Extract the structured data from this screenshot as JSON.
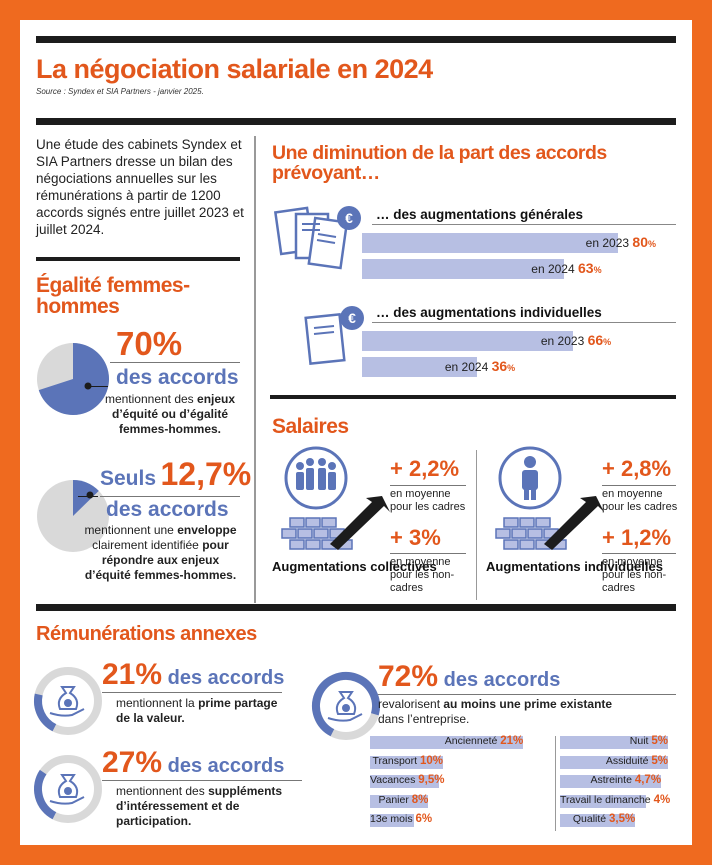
{
  "title": "La négociation salariale en 2024",
  "source": "Source : Syndex et SIA Partners - janvier 2025.",
  "intro": "Une étude des cabinets Syndex et SIA Partners dresse un bilan des négociations annuelles sur les rémunérations à partir de 1200 accords signés entre juillet 2023 et juillet 2024.",
  "colors": {
    "accent": "#e2571c",
    "blue": "#5b74b8",
    "lightblue": "#b7bfe3"
  },
  "egalite": {
    "heading": "Égalité femmes-hommes",
    "stat1": {
      "value": "70%",
      "label": "des accords",
      "desc1": "mentionnent des ",
      "desc2": "enjeux d’équité ou d’égalité femmes-hommes.",
      "desc3": "",
      "pie_pct": 70
    },
    "stat2": {
      "prefix": "Seuls",
      "value": "12,7%",
      "label": "des accords",
      "desc1": "mentionnent une ",
      "desc2": "enveloppe",
      "desc3": " clairement identifiée ",
      "desc4": "pour répondre aux enjeux d’équité femmes-hommes.",
      "pie_pct": 12.7
    }
  },
  "diminution": {
    "heading": "Une diminution de la part des accords prévoyant…",
    "generales": {
      "title": "… des augmentations générales",
      "rows": [
        {
          "year": "en 2023",
          "pct": "80",
          "value": 80
        },
        {
          "year": "en 2024",
          "pct": "63",
          "value": 63
        }
      ]
    },
    "individuelles": {
      "title": "… des augmentations individuelles",
      "rows": [
        {
          "year": "en 2023",
          "pct": "66",
          "value": 66
        },
        {
          "year": "en 2024",
          "pct": "36",
          "value": 36
        }
      ]
    }
  },
  "salaires": {
    "heading": "Salaires",
    "collectives": {
      "label": "Augmentations collectives",
      "cadres": {
        "value": "+ 2,2%",
        "desc": "en moyenne pour les cadres"
      },
      "noncadres": {
        "value": "+ 3%",
        "desc": "en moyenne pour les non-cadres"
      }
    },
    "individuelles": {
      "label": "Augmentations individuelles",
      "cadres": {
        "value": "+ 2,8%",
        "desc": "en moyenne pour les cadres"
      },
      "noncadres": {
        "value": "+ 1,2%",
        "desc": "en moyenne pour les non-cadres"
      }
    }
  },
  "annexes": {
    "heading": "Rémunérations annexes",
    "stat21": {
      "value": "21%",
      "label": " des accords",
      "desc1": "mentionnent la ",
      "desc2": "prime partage de la valeur.",
      "gauge_pct": 21
    },
    "stat27": {
      "value": "27%",
      "label": " des accords",
      "desc1": "mentionnent des ",
      "desc2": "suppléments d’intéressement et de participation.",
      "gauge_pct": 27
    },
    "stat72": {
      "value": "72%",
      "label": " des accords",
      "desc1": "revalorisent ",
      "desc2": "au moins une prime existante",
      "desc3": "dans l’entreprise.",
      "gauge_pct": 72
    },
    "primes_left": [
      {
        "label": "Ancienneté",
        "pct": "21%",
        "value": 21
      },
      {
        "label": "Transport",
        "pct": "10%",
        "value": 10
      },
      {
        "label": "Vacances",
        "pct": "9,5%",
        "value": 9.5
      },
      {
        "label": "Panier",
        "pct": "8%",
        "value": 8
      },
      {
        "label": "13e mois",
        "pct": "6%",
        "value": 6
      }
    ],
    "primes_right": [
      {
        "label": "Nuit",
        "pct": "5%",
        "value": 5
      },
      {
        "label": "Assiduité",
        "pct": "5%",
        "value": 5
      },
      {
        "label": "Astreinte",
        "pct": "4,7%",
        "value": 4.7
      },
      {
        "label": "Travail le dimanche",
        "pct": "4%",
        "value": 4
      },
      {
        "label": "Qualité",
        "pct": "3,5%",
        "value": 3.5
      }
    ]
  }
}
